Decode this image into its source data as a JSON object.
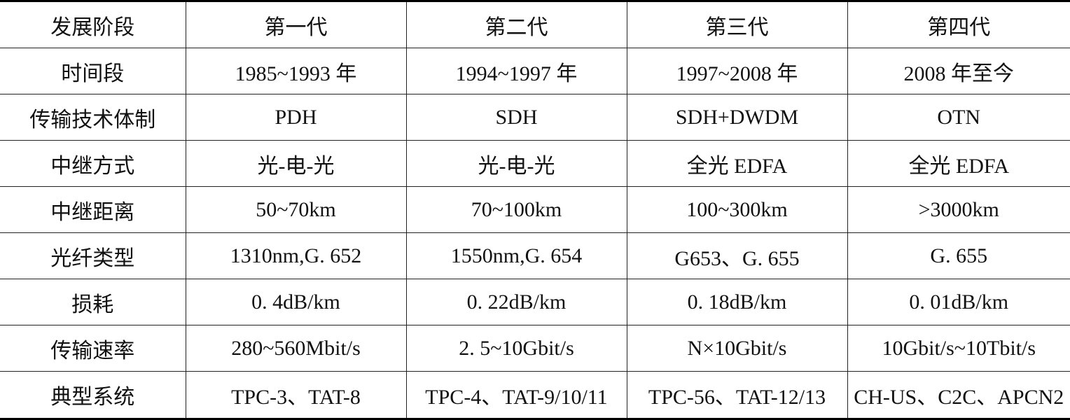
{
  "table": {
    "header": [
      "发展阶段",
      "第一代",
      "第二代",
      "第三代",
      "第四代"
    ],
    "rows": [
      [
        "时间段",
        "1985~1993 年",
        "1994~1997 年",
        "1997~2008 年",
        "2008 年至今"
      ],
      [
        "传输技术体制",
        "PDH",
        "SDH",
        "SDH+DWDM",
        "OTN"
      ],
      [
        "中继方式",
        "光-电-光",
        "光-电-光",
        "全光 EDFA",
        "全光 EDFA"
      ],
      [
        "中继距离",
        "50~70km",
        "70~100km",
        "100~300km",
        ">3000km"
      ],
      [
        "光纤类型",
        "1310nm,G. 652",
        "1550nm,G. 654",
        "G653、G. 655",
        "G. 655"
      ],
      [
        "损耗",
        "0. 4dB/km",
        "0. 22dB/km",
        "0. 18dB/km",
        "0. 01dB/km"
      ],
      [
        "传输速率",
        "280~560Mbit/s",
        "2. 5~10Gbit/s",
        "N×10Gbit/s",
        "10Gbit/s~10Tbit/s"
      ],
      [
        "典型系统",
        "TPC-3、TAT-8",
        "TPC-4、TAT-9/10/11",
        "TPC-56、TAT-12/13",
        "CH-US、C2C、APCN2"
      ]
    ]
  }
}
